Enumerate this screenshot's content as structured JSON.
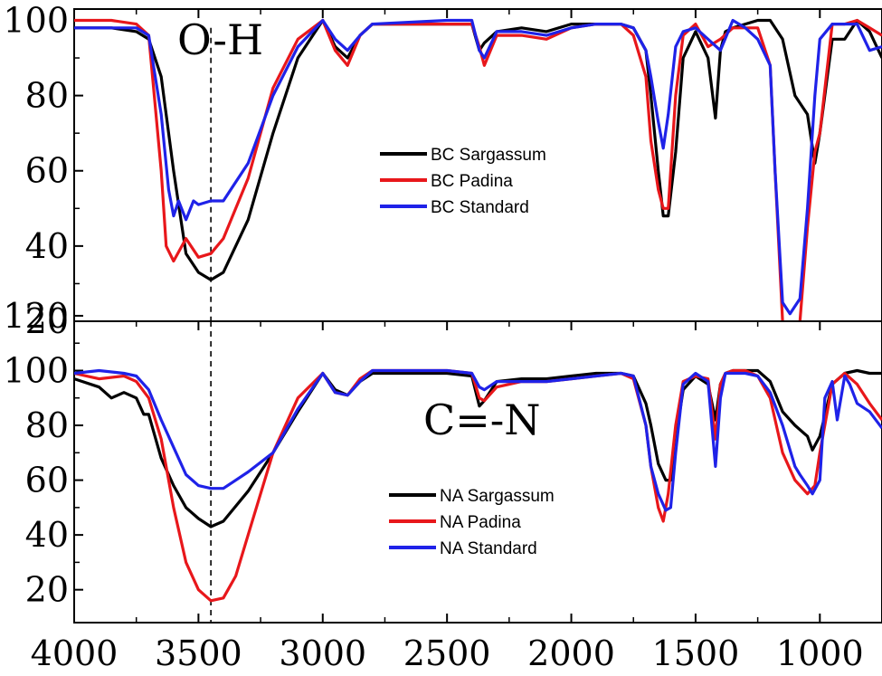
{
  "chart_data": [
    {
      "type": "line",
      "panel": "top",
      "title": "",
      "xlabel": "",
      "ylabel": "",
      "xlim": [
        4000,
        750
      ],
      "ylim": [
        20,
        103
      ],
      "x_ticks": [
        4000,
        3500,
        3000,
        2500,
        2000,
        1500,
        1000
      ],
      "y_ticks": [
        20,
        40,
        60,
        80,
        100
      ],
      "y_tick_labels": [
        "20",
        "40",
        "60",
        "80",
        "100"
      ],
      "annotation": {
        "text": "O-H",
        "x": 3380,
        "y": 95
      },
      "dashed_line_x": 3450,
      "legend_position": "center",
      "series": [
        {
          "name": "BC Sargassum",
          "color": "#000000",
          "x": [
            4000,
            3850,
            3750,
            3700,
            3650,
            3600,
            3550,
            3500,
            3450,
            3400,
            3300,
            3200,
            3100,
            3000,
            2950,
            2900,
            2850,
            2800,
            2500,
            2400,
            2370,
            2350,
            2300,
            2200,
            2100,
            2000,
            1900,
            1800,
            1750,
            1700,
            1680,
            1650,
            1630,
            1610,
            1580,
            1550,
            1500,
            1450,
            1420,
            1400,
            1380,
            1350,
            1300,
            1250,
            1200,
            1150,
            1100,
            1050,
            1020,
            1000,
            950,
            900,
            850,
            800,
            750
          ],
          "y": [
            98,
            98,
            97,
            95,
            85,
            60,
            38,
            33,
            31,
            33,
            47,
            70,
            90,
            100,
            93,
            90,
            96,
            99,
            99,
            99,
            92,
            94,
            97,
            98,
            97,
            99,
            99,
            99,
            98,
            92,
            80,
            60,
            48,
            48,
            65,
            90,
            97,
            90,
            74,
            92,
            97,
            98,
            99,
            100,
            100,
            95,
            80,
            75,
            62,
            70,
            95,
            95,
            100,
            97,
            90
          ]
        },
        {
          "name": "BC Padina",
          "color": "#e8171b",
          "x": [
            4000,
            3850,
            3750,
            3700,
            3650,
            3630,
            3600,
            3550,
            3500,
            3450,
            3400,
            3300,
            3200,
            3100,
            3000,
            2950,
            2900,
            2850,
            2800,
            2500,
            2400,
            2370,
            2350,
            2300,
            2200,
            2100,
            2000,
            1900,
            1800,
            1750,
            1700,
            1680,
            1650,
            1630,
            1610,
            1580,
            1550,
            1500,
            1450,
            1400,
            1350,
            1300,
            1250,
            1200,
            1180,
            1150,
            1120,
            1100,
            1080,
            1050,
            1020,
            1000,
            950,
            900,
            850,
            800,
            750
          ],
          "y": [
            100,
            100,
            99,
            96,
            60,
            40,
            36,
            42,
            37,
            38,
            42,
            58,
            82,
            95,
            100,
            92,
            88,
            96,
            99,
            99,
            99,
            93,
            88,
            96,
            96,
            95,
            98,
            99,
            99,
            96,
            85,
            68,
            55,
            50,
            50,
            80,
            96,
            99,
            93,
            95,
            98,
            98,
            98,
            88,
            60,
            20,
            18,
            19,
            20,
            45,
            65,
            70,
            99,
            99,
            100,
            98,
            96
          ]
        },
        {
          "name": "BC Standard",
          "color": "#1f22e8",
          "x": [
            4000,
            3850,
            3750,
            3700,
            3650,
            3620,
            3600,
            3580,
            3550,
            3520,
            3500,
            3450,
            3400,
            3300,
            3200,
            3100,
            3000,
            2950,
            2900,
            2850,
            2800,
            2500,
            2400,
            2370,
            2350,
            2300,
            2200,
            2100,
            2000,
            1900,
            1800,
            1750,
            1700,
            1680,
            1650,
            1630,
            1610,
            1580,
            1550,
            1500,
            1450,
            1400,
            1350,
            1300,
            1250,
            1200,
            1180,
            1150,
            1120,
            1100,
            1080,
            1050,
            1020,
            1000,
            950,
            900,
            850,
            800,
            750
          ],
          "y": [
            98,
            98,
            98,
            96,
            75,
            55,
            48,
            52,
            47,
            52,
            51,
            52,
            52,
            62,
            80,
            93,
            100,
            95,
            92,
            96,
            99,
            100,
            100,
            92,
            90,
            97,
            97,
            96,
            98,
            99,
            99,
            98,
            92,
            85,
            73,
            66,
            75,
            93,
            97,
            98,
            95,
            92,
            100,
            98,
            95,
            88,
            60,
            25,
            22,
            24,
            26,
            50,
            80,
            95,
            99,
            99,
            99,
            92,
            93
          ]
        }
      ]
    },
    {
      "type": "line",
      "panel": "bottom",
      "title": "",
      "xlabel": "",
      "ylabel": "",
      "xlim": [
        4000,
        750
      ],
      "ylim": [
        8,
        118
      ],
      "x_ticks": [
        4000,
        3500,
        3000,
        2500,
        2000,
        1500,
        1000
      ],
      "x_tick_labels": [
        "4000",
        "3500",
        "3000",
        "2500",
        "2000",
        "1500",
        "1000"
      ],
      "y_ticks": [
        20,
        40,
        60,
        80,
        100,
        120
      ],
      "y_tick_labels": [
        "20",
        "40",
        "60",
        "80",
        "100",
        "120"
      ],
      "annotation": {
        "text": "C=-N",
        "x": 2400,
        "y": 80
      },
      "dashed_line_x": 3450,
      "legend_position": "center",
      "series": [
        {
          "name": "NA Sargassum",
          "color": "#000000",
          "x": [
            4000,
            3900,
            3850,
            3800,
            3750,
            3720,
            3700,
            3650,
            3600,
            3550,
            3500,
            3450,
            3400,
            3300,
            3200,
            3100,
            3000,
            2950,
            2900,
            2850,
            2800,
            2500,
            2400,
            2370,
            2350,
            2300,
            2200,
            2100,
            2000,
            1900,
            1800,
            1750,
            1700,
            1680,
            1650,
            1620,
            1600,
            1580,
            1550,
            1500,
            1450,
            1420,
            1400,
            1380,
            1350,
            1300,
            1250,
            1200,
            1150,
            1100,
            1050,
            1030,
            1000,
            950,
            900,
            850,
            800,
            750
          ],
          "y": [
            97,
            94,
            90,
            92,
            90,
            84,
            84,
            68,
            58,
            50,
            46,
            43,
            45,
            56,
            70,
            85,
            99,
            93,
            91,
            96,
            99,
            99,
            98,
            87,
            89,
            96,
            97,
            97,
            98,
            99,
            99,
            98,
            88,
            80,
            66,
            60,
            60,
            75,
            93,
            98,
            95,
            82,
            95,
            99,
            100,
            100,
            100,
            96,
            85,
            80,
            76,
            71,
            76,
            95,
            99,
            100,
            99,
            99
          ]
        },
        {
          "name": "NA Padina",
          "color": "#e8171b",
          "x": [
            4000,
            3900,
            3800,
            3750,
            3700,
            3650,
            3600,
            3550,
            3500,
            3450,
            3400,
            3350,
            3300,
            3200,
            3100,
            3000,
            2950,
            2900,
            2850,
            2800,
            2500,
            2400,
            2370,
            2350,
            2300,
            2200,
            2100,
            2000,
            1900,
            1800,
            1750,
            1700,
            1680,
            1650,
            1630,
            1610,
            1580,
            1550,
            1500,
            1450,
            1420,
            1400,
            1380,
            1350,
            1300,
            1250,
            1200,
            1150,
            1100,
            1050,
            1020,
            1000,
            950,
            900,
            850,
            800,
            750
          ],
          "y": [
            99,
            97,
            98,
            96,
            90,
            75,
            50,
            30,
            20,
            16,
            17,
            25,
            40,
            70,
            90,
            99,
            92,
            91,
            97,
            100,
            100,
            99,
            90,
            89,
            94,
            96,
            96,
            97,
            98,
            99,
            97,
            80,
            65,
            50,
            45,
            55,
            80,
            96,
            98,
            97,
            75,
            95,
            99,
            100,
            100,
            98,
            90,
            70,
            60,
            55,
            58,
            70,
            95,
            99,
            95,
            88,
            82
          ]
        },
        {
          "name": "NA Standard",
          "color": "#1f22e8",
          "x": [
            4000,
            3900,
            3800,
            3750,
            3700,
            3650,
            3600,
            3550,
            3500,
            3450,
            3400,
            3300,
            3200,
            3100,
            3000,
            2950,
            2900,
            2850,
            2800,
            2500,
            2400,
            2370,
            2350,
            2300,
            2200,
            2100,
            2000,
            1900,
            1800,
            1750,
            1700,
            1680,
            1650,
            1620,
            1600,
            1580,
            1550,
            1500,
            1450,
            1420,
            1400,
            1380,
            1350,
            1300,
            1250,
            1200,
            1150,
            1100,
            1080,
            1050,
            1030,
            1000,
            980,
            950,
            930,
            900,
            880,
            850,
            800,
            750
          ],
          "y": [
            99,
            100,
            99,
            98,
            93,
            82,
            72,
            62,
            58,
            57,
            57,
            63,
            70,
            86,
            99,
            92,
            91,
            96,
            100,
            100,
            99,
            94,
            93,
            96,
            96,
            96,
            97,
            98,
            99,
            98,
            80,
            65,
            55,
            49,
            50,
            70,
            95,
            99,
            96,
            65,
            90,
            99,
            99,
            99,
            98,
            92,
            80,
            65,
            62,
            58,
            55,
            60,
            90,
            96,
            82,
            98,
            95,
            88,
            85,
            79
          ]
        }
      ]
    }
  ]
}
